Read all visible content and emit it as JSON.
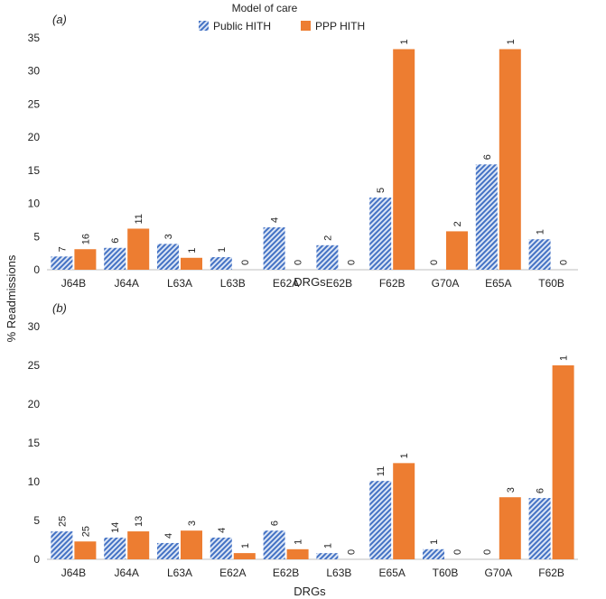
{
  "colors": {
    "public": "#4472c4",
    "ppp": "#ed7d31",
    "axis": "#bfbfbf"
  },
  "legend": {
    "title": "Model of care",
    "items": [
      "Public HITH",
      "PPP HITH"
    ]
  },
  "ylabel": "% Readmissions",
  "chart_data": [
    {
      "type": "bar",
      "panel": "(a)",
      "xlabel": "DRGs",
      "ylim": [
        0,
        35
      ],
      "yticks": [
        0,
        5,
        10,
        15,
        20,
        25,
        30,
        35
      ],
      "categories": [
        "J64B",
        "J64A",
        "L63A",
        "L63B",
        "E62A",
        "E62B",
        "F62B",
        "G70A",
        "E65A",
        "T60B"
      ],
      "series": [
        {
          "name": "Public HITH",
          "values": [
            2.0,
            3.3,
            3.9,
            1.9,
            6.4,
            3.7,
            10.9,
            0,
            15.9,
            4.6
          ],
          "labels": [
            "7",
            "6",
            "3",
            "1",
            "4",
            "2",
            "5",
            "0",
            "6",
            "1"
          ]
        },
        {
          "name": "PPP HITH",
          "values": [
            3.1,
            6.2,
            1.8,
            0,
            0,
            0,
            33.3,
            5.8,
            33.3,
            0
          ],
          "labels": [
            "16",
            "11",
            "1",
            "0",
            "0",
            "0",
            "1",
            "2",
            "1",
            "0"
          ]
        }
      ]
    },
    {
      "type": "bar",
      "panel": "(b)",
      "xlabel": "DRGs",
      "ylim": [
        0,
        30
      ],
      "yticks": [
        0,
        5,
        10,
        15,
        20,
        25,
        30
      ],
      "categories": [
        "J64B",
        "J64A",
        "L63A",
        "E62A",
        "E62B",
        "L63B",
        "E65A",
        "T60B",
        "G70A",
        "F62B"
      ],
      "series": [
        {
          "name": "Public HITH",
          "values": [
            3.6,
            2.8,
            2.1,
            2.8,
            3.7,
            0.8,
            10.1,
            1.3,
            0,
            7.9
          ],
          "labels": [
            "25",
            "14",
            "4",
            "4",
            "6",
            "1",
            "11",
            "1",
            "0",
            "6"
          ]
        },
        {
          "name": "PPP HITH",
          "values": [
            2.3,
            3.6,
            3.7,
            0.8,
            1.3,
            0,
            12.4,
            0,
            8.0,
            25.0
          ],
          "labels": [
            "25",
            "13",
            "3",
            "1",
            "1",
            "0",
            "1",
            "0",
            "3",
            "1"
          ]
        }
      ]
    }
  ]
}
